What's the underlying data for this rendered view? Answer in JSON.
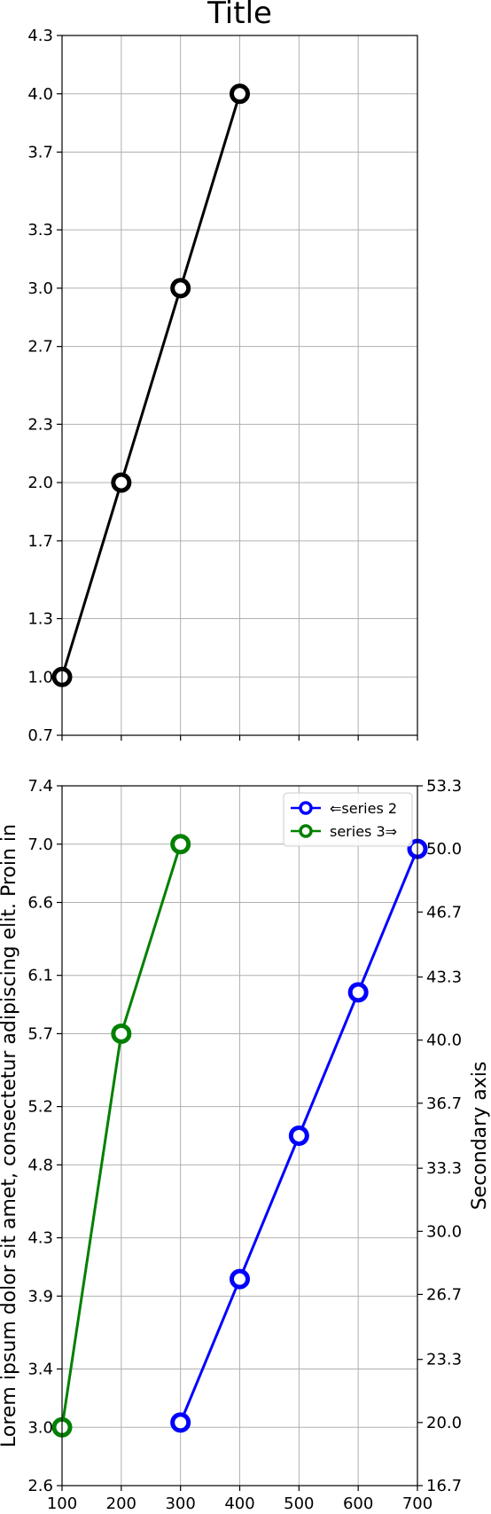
{
  "chart_data": [
    {
      "type": "line",
      "title": "Title",
      "xlabel": "",
      "ylabel": "",
      "xlim": [
        100,
        700
      ],
      "ylim": [
        0.7,
        4.3
      ],
      "x_ticks": [
        100,
        200,
        300,
        400,
        500,
        600,
        700
      ],
      "x_tick_labels_visible": false,
      "y_ticks": [
        0.7,
        1.0,
        1.3,
        1.7,
        2.0,
        2.3,
        2.7,
        3.0,
        3.3,
        3.7,
        4.0,
        4.3
      ],
      "y_tick_labels": [
        "0.7",
        "1.0",
        "1.3",
        "1.7",
        "2.0",
        "2.3",
        "2.7",
        "3.0",
        "3.3",
        "3.7",
        "4.0",
        "4.3"
      ],
      "grid": true,
      "series": [
        {
          "color": "#000000",
          "marker": "open-circle",
          "x": [
            100,
            200,
            300,
            400
          ],
          "values": [
            1,
            2,
            3,
            4
          ]
        }
      ]
    },
    {
      "type": "line",
      "title": "",
      "xlabel": "",
      "ylabel": "Lorem ipsum dolor sit amet, consectetur adipiscing elit. Proin in",
      "secondary_ylabel": "Secondary axis",
      "xlim": [
        100,
        700
      ],
      "ylim": [
        2.6,
        7.4
      ],
      "secondary_ylim": [
        16.7,
        53.3
      ],
      "x_ticks": [
        100,
        200,
        300,
        400,
        500,
        600,
        700
      ],
      "x_tick_labels": [
        "100",
        "200",
        "300",
        "400",
        "500",
        "600",
        "700"
      ],
      "y_ticks": [
        2.6,
        3.0,
        3.4,
        3.9,
        4.3,
        4.8,
        5.2,
        5.7,
        6.1,
        6.6,
        7.0,
        7.4
      ],
      "y_tick_labels": [
        "2.6",
        "3.0",
        "3.4",
        "3.9",
        "4.3",
        "4.8",
        "5.2",
        "5.7",
        "6.1",
        "6.6",
        "7.0",
        "7.4"
      ],
      "secondary_y_ticks": [
        16.7,
        20.0,
        23.3,
        26.7,
        30.0,
        33.3,
        36.7,
        40.0,
        43.3,
        46.7,
        50.0,
        53.3
      ],
      "secondary_y_tick_labels": [
        "16.7",
        "20.0",
        "23.3",
        "26.7",
        "30.0",
        "33.3",
        "36.7",
        "40.0",
        "43.3",
        "46.7",
        "50.0",
        "53.3"
      ],
      "grid": true,
      "legend_position": "top-right",
      "series": [
        {
          "name": "⇐series 2",
          "axis": "secondary",
          "color": "#0000ff",
          "marker": "open-circle",
          "x": [
            300,
            400,
            500,
            600,
            700
          ],
          "values": [
            20,
            27.5,
            35,
            42.5,
            50
          ]
        },
        {
          "name": "series 3⇒",
          "axis": "primary",
          "color": "#008000",
          "marker": "open-circle",
          "x": [
            100,
            200,
            300
          ],
          "values": [
            3,
            5.7,
            7
          ]
        }
      ]
    }
  ]
}
